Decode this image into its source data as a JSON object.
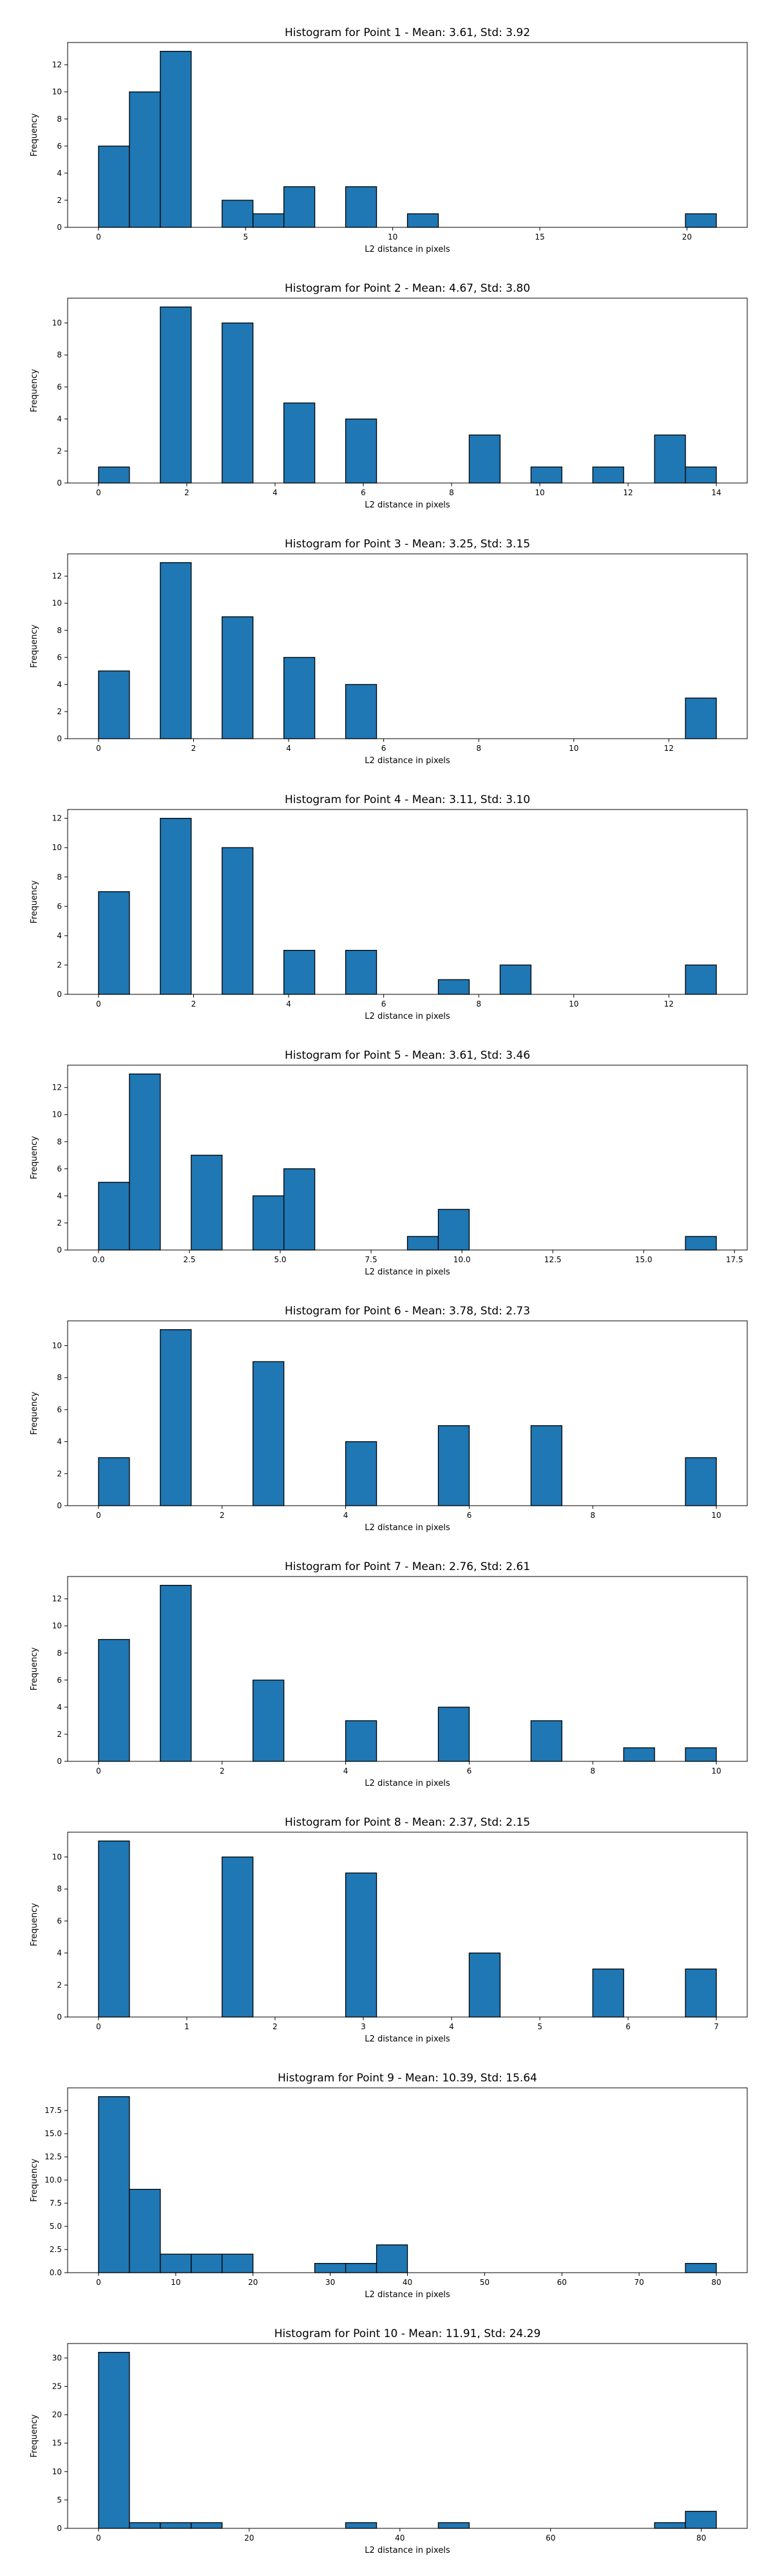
{
  "chart_data": [
    {
      "type": "bar",
      "title": "Histogram for Point 1 - Mean: 3.61, Std: 3.92",
      "xlabel": "L2 distance in pixels",
      "ylabel": "Frequency",
      "xlim": [
        -1.05,
        22.05
      ],
      "ylim": [
        0,
        13.65
      ],
      "xticks": [
        {
          "v": 0,
          "label": "0"
        },
        {
          "v": 5,
          "label": "5"
        },
        {
          "v": 10,
          "label": "10"
        },
        {
          "v": 15,
          "label": "15"
        },
        {
          "v": 20,
          "label": "20"
        }
      ],
      "yticks": [
        {
          "v": 0,
          "label": "0"
        },
        {
          "v": 2,
          "label": "2"
        },
        {
          "v": 4,
          "label": "4"
        },
        {
          "v": 6,
          "label": "6"
        },
        {
          "v": 8,
          "label": "8"
        },
        {
          "v": 10,
          "label": "10"
        },
        {
          "v": 12,
          "label": "12"
        }
      ],
      "bins": [
        [
          0,
          1.05,
          6
        ],
        [
          1.05,
          2.1,
          10
        ],
        [
          2.1,
          3.15,
          13
        ],
        [
          4.2,
          5.25,
          2
        ],
        [
          5.25,
          6.3,
          1
        ],
        [
          6.3,
          7.35,
          3
        ],
        [
          8.4,
          9.45,
          3
        ],
        [
          10.5,
          11.55,
          1
        ],
        [
          19.95,
          21,
          1
        ]
      ]
    },
    {
      "type": "bar",
      "title": "Histogram for Point 2 - Mean: 4.67, Std: 3.80",
      "xlabel": "L2 distance in pixels",
      "ylabel": "Frequency",
      "xlim": [
        -0.7,
        14.7
      ],
      "ylim": [
        0,
        11.55
      ],
      "xticks": [
        {
          "v": 0,
          "label": "0"
        },
        {
          "v": 2,
          "label": "2"
        },
        {
          "v": 4,
          "label": "4"
        },
        {
          "v": 6,
          "label": "6"
        },
        {
          "v": 8,
          "label": "8"
        },
        {
          "v": 10,
          "label": "10"
        },
        {
          "v": 12,
          "label": "12"
        },
        {
          "v": 14,
          "label": "14"
        }
      ],
      "yticks": [
        {
          "v": 0,
          "label": "0"
        },
        {
          "v": 2,
          "label": "2"
        },
        {
          "v": 4,
          "label": "4"
        },
        {
          "v": 6,
          "label": "6"
        },
        {
          "v": 8,
          "label": "8"
        },
        {
          "v": 10,
          "label": "10"
        }
      ],
      "bins": [
        [
          0,
          0.7,
          1
        ],
        [
          1.4,
          2.1,
          11
        ],
        [
          2.8,
          3.5,
          10
        ],
        [
          4.2,
          4.9,
          5
        ],
        [
          5.6,
          6.3,
          4
        ],
        [
          8.4,
          9.1,
          3
        ],
        [
          9.8,
          10.5,
          1
        ],
        [
          11.2,
          11.9,
          1
        ],
        [
          12.6,
          13.3,
          3
        ],
        [
          13.3,
          14,
          1
        ]
      ]
    },
    {
      "type": "bar",
      "title": "Histogram for Point 3 - Mean: 3.25, Std: 3.15",
      "xlabel": "L2 distance in pixels",
      "ylabel": "Frequency",
      "xlim": [
        -0.65,
        13.65
      ],
      "ylim": [
        0,
        13.65
      ],
      "xticks": [
        {
          "v": 0,
          "label": "0"
        },
        {
          "v": 2,
          "label": "2"
        },
        {
          "v": 4,
          "label": "4"
        },
        {
          "v": 6,
          "label": "6"
        },
        {
          "v": 8,
          "label": "8"
        },
        {
          "v": 10,
          "label": "10"
        },
        {
          "v": 12,
          "label": "12"
        }
      ],
      "yticks": [
        {
          "v": 0,
          "label": "0"
        },
        {
          "v": 2,
          "label": "2"
        },
        {
          "v": 4,
          "label": "4"
        },
        {
          "v": 6,
          "label": "6"
        },
        {
          "v": 8,
          "label": "8"
        },
        {
          "v": 10,
          "label": "10"
        },
        {
          "v": 12,
          "label": "12"
        }
      ],
      "bins": [
        [
          0,
          0.65,
          5
        ],
        [
          1.3,
          1.95,
          13
        ],
        [
          2.6,
          3.25,
          9
        ],
        [
          3.9,
          4.55,
          6
        ],
        [
          5.2,
          5.85,
          4
        ],
        [
          12.35,
          13,
          3
        ]
      ]
    },
    {
      "type": "bar",
      "title": "Histogram for Point 4 - Mean: 3.11, Std: 3.10",
      "xlabel": "L2 distance in pixels",
      "ylabel": "Frequency",
      "xlim": [
        -0.65,
        13.65
      ],
      "ylim": [
        0,
        12.6
      ],
      "xticks": [
        {
          "v": 0,
          "label": "0"
        },
        {
          "v": 2,
          "label": "2"
        },
        {
          "v": 4,
          "label": "4"
        },
        {
          "v": 6,
          "label": "6"
        },
        {
          "v": 8,
          "label": "8"
        },
        {
          "v": 10,
          "label": "10"
        },
        {
          "v": 12,
          "label": "12"
        }
      ],
      "yticks": [
        {
          "v": 0,
          "label": "0"
        },
        {
          "v": 2,
          "label": "2"
        },
        {
          "v": 4,
          "label": "4"
        },
        {
          "v": 6,
          "label": "6"
        },
        {
          "v": 8,
          "label": "8"
        },
        {
          "v": 10,
          "label": "10"
        },
        {
          "v": 12,
          "label": "12"
        }
      ],
      "bins": [
        [
          0,
          0.65,
          7
        ],
        [
          1.3,
          1.95,
          12
        ],
        [
          2.6,
          3.25,
          10
        ],
        [
          3.9,
          4.55,
          3
        ],
        [
          5.2,
          5.85,
          3
        ],
        [
          7.15,
          7.8,
          1
        ],
        [
          8.45,
          9.1,
          2
        ],
        [
          12.35,
          13,
          2
        ]
      ]
    },
    {
      "type": "bar",
      "title": "Histogram for Point 5 - Mean: 3.61, Std: 3.46",
      "xlabel": "L2 distance in pixels",
      "ylabel": "Frequency",
      "xlim": [
        -0.85,
        17.85
      ],
      "ylim": [
        0,
        13.65
      ],
      "xticks": [
        {
          "v": 0,
          "label": "0.0"
        },
        {
          "v": 2.5,
          "label": "2.5"
        },
        {
          "v": 5,
          "label": "5.0"
        },
        {
          "v": 7.5,
          "label": "7.5"
        },
        {
          "v": 10,
          "label": "10.0"
        },
        {
          "v": 12.5,
          "label": "12.5"
        },
        {
          "v": 15,
          "label": "15.0"
        },
        {
          "v": 17.5,
          "label": "17.5"
        }
      ],
      "yticks": [
        {
          "v": 0,
          "label": "0"
        },
        {
          "v": 2,
          "label": "2"
        },
        {
          "v": 4,
          "label": "4"
        },
        {
          "v": 6,
          "label": "6"
        },
        {
          "v": 8,
          "label": "8"
        },
        {
          "v": 10,
          "label": "10"
        },
        {
          "v": 12,
          "label": "12"
        }
      ],
      "bins": [
        [
          0,
          0.85,
          5
        ],
        [
          0.85,
          1.7,
          13
        ],
        [
          2.55,
          3.4,
          7
        ],
        [
          4.25,
          5.1,
          4
        ],
        [
          5.1,
          5.95,
          6
        ],
        [
          8.5,
          9.35,
          1
        ],
        [
          9.35,
          10.2,
          3
        ],
        [
          16.15,
          17,
          1
        ]
      ]
    },
    {
      "type": "bar",
      "title": "Histogram for Point 6 - Mean: 3.78, Std: 2.73",
      "xlabel": "L2 distance in pixels",
      "ylabel": "Frequency",
      "xlim": [
        -0.5,
        10.5
      ],
      "ylim": [
        0,
        11.55
      ],
      "xticks": [
        {
          "v": 0,
          "label": "0"
        },
        {
          "v": 2,
          "label": "2"
        },
        {
          "v": 4,
          "label": "4"
        },
        {
          "v": 6,
          "label": "6"
        },
        {
          "v": 8,
          "label": "8"
        },
        {
          "v": 10,
          "label": "10"
        }
      ],
      "yticks": [
        {
          "v": 0,
          "label": "0"
        },
        {
          "v": 2,
          "label": "2"
        },
        {
          "v": 4,
          "label": "4"
        },
        {
          "v": 6,
          "label": "6"
        },
        {
          "v": 8,
          "label": "8"
        },
        {
          "v": 10,
          "label": "10"
        }
      ],
      "bins": [
        [
          0,
          0.5,
          3
        ],
        [
          1,
          1.5,
          11
        ],
        [
          2.5,
          3,
          9
        ],
        [
          4,
          4.5,
          4
        ],
        [
          5.5,
          6,
          5
        ],
        [
          7,
          7.5,
          5
        ],
        [
          9.5,
          10,
          3
        ]
      ]
    },
    {
      "type": "bar",
      "title": "Histogram for Point 7 - Mean: 2.76, Std: 2.61",
      "xlabel": "L2 distance in pixels",
      "ylabel": "Frequency",
      "xlim": [
        -0.5,
        10.5
      ],
      "ylim": [
        0,
        13.65
      ],
      "xticks": [
        {
          "v": 0,
          "label": "0"
        },
        {
          "v": 2,
          "label": "2"
        },
        {
          "v": 4,
          "label": "4"
        },
        {
          "v": 6,
          "label": "6"
        },
        {
          "v": 8,
          "label": "8"
        },
        {
          "v": 10,
          "label": "10"
        }
      ],
      "yticks": [
        {
          "v": 0,
          "label": "0"
        },
        {
          "v": 2,
          "label": "2"
        },
        {
          "v": 4,
          "label": "4"
        },
        {
          "v": 6,
          "label": "6"
        },
        {
          "v": 8,
          "label": "8"
        },
        {
          "v": 10,
          "label": "10"
        },
        {
          "v": 12,
          "label": "12"
        }
      ],
      "bins": [
        [
          0,
          0.5,
          9
        ],
        [
          1,
          1.5,
          13
        ],
        [
          2.5,
          3,
          6
        ],
        [
          4,
          4.5,
          3
        ],
        [
          5.5,
          6,
          4
        ],
        [
          7,
          7.5,
          3
        ],
        [
          8.5,
          9,
          1
        ],
        [
          9.5,
          10,
          1
        ]
      ]
    },
    {
      "type": "bar",
      "title": "Histogram for Point 8 - Mean: 2.37, Std: 2.15",
      "xlabel": "L2 distance in pixels",
      "ylabel": "Frequency",
      "xlim": [
        -0.35,
        7.35
      ],
      "ylim": [
        0,
        11.55
      ],
      "xticks": [
        {
          "v": 0,
          "label": "0"
        },
        {
          "v": 1,
          "label": "1"
        },
        {
          "v": 2,
          "label": "2"
        },
        {
          "v": 3,
          "label": "3"
        },
        {
          "v": 4,
          "label": "4"
        },
        {
          "v": 5,
          "label": "5"
        },
        {
          "v": 6,
          "label": "6"
        },
        {
          "v": 7,
          "label": "7"
        }
      ],
      "yticks": [
        {
          "v": 0,
          "label": "0"
        },
        {
          "v": 2,
          "label": "2"
        },
        {
          "v": 4,
          "label": "4"
        },
        {
          "v": 6,
          "label": "6"
        },
        {
          "v": 8,
          "label": "8"
        },
        {
          "v": 10,
          "label": "10"
        }
      ],
      "bins": [
        [
          0,
          0.35,
          11
        ],
        [
          1.4,
          1.75,
          10
        ],
        [
          2.8,
          3.15,
          9
        ],
        [
          4.2,
          4.55,
          4
        ],
        [
          5.6,
          5.95,
          3
        ],
        [
          6.65,
          7,
          3
        ]
      ]
    },
    {
      "type": "bar",
      "title": "Histogram for Point 9 - Mean: 10.39, Std: 15.64",
      "xlabel": "L2 distance in pixels",
      "ylabel": "Frequency",
      "xlim": [
        -4,
        84
      ],
      "ylim": [
        0,
        19.95
      ],
      "xticks": [
        {
          "v": 0,
          "label": "0"
        },
        {
          "v": 10,
          "label": "10"
        },
        {
          "v": 20,
          "label": "20"
        },
        {
          "v": 30,
          "label": "30"
        },
        {
          "v": 40,
          "label": "40"
        },
        {
          "v": 50,
          "label": "50"
        },
        {
          "v": 60,
          "label": "60"
        },
        {
          "v": 70,
          "label": "70"
        },
        {
          "v": 80,
          "label": "80"
        }
      ],
      "yticks": [
        {
          "v": 0,
          "label": "0.0"
        },
        {
          "v": 2.5,
          "label": "2.5"
        },
        {
          "v": 5,
          "label": "5.0"
        },
        {
          "v": 7.5,
          "label": "7.5"
        },
        {
          "v": 10,
          "label": "10.0"
        },
        {
          "v": 12.5,
          "label": "12.5"
        },
        {
          "v": 15,
          "label": "15.0"
        },
        {
          "v": 17.5,
          "label": "17.5"
        }
      ],
      "bins": [
        [
          0,
          4,
          19
        ],
        [
          4,
          8,
          9
        ],
        [
          8,
          12,
          2
        ],
        [
          12,
          16,
          2
        ],
        [
          16,
          20,
          2
        ],
        [
          28,
          32,
          1
        ],
        [
          32,
          36,
          1
        ],
        [
          36,
          40,
          3
        ],
        [
          76,
          80,
          1
        ]
      ]
    },
    {
      "type": "bar",
      "title": "Histogram for Point 10 - Mean: 11.91, Std: 24.29",
      "xlabel": "L2 distance in pixels",
      "ylabel": "Frequency",
      "xlim": [
        -4.1,
        86.1
      ],
      "ylim": [
        0,
        32.55
      ],
      "xticks": [
        {
          "v": 0,
          "label": "0"
        },
        {
          "v": 20,
          "label": "20"
        },
        {
          "v": 40,
          "label": "40"
        },
        {
          "v": 60,
          "label": "60"
        },
        {
          "v": 80,
          "label": "80"
        }
      ],
      "yticks": [
        {
          "v": 0,
          "label": "0"
        },
        {
          "v": 5,
          "label": "5"
        },
        {
          "v": 10,
          "label": "10"
        },
        {
          "v": 15,
          "label": "15"
        },
        {
          "v": 20,
          "label": "20"
        },
        {
          "v": 25,
          "label": "25"
        },
        {
          "v": 30,
          "label": "30"
        }
      ],
      "bins": [
        [
          0,
          4.1,
          31
        ],
        [
          4.1,
          8.2,
          1
        ],
        [
          8.2,
          12.3,
          1
        ],
        [
          12.3,
          16.4,
          1
        ],
        [
          32.8,
          36.9,
          1
        ],
        [
          45.1,
          49.2,
          1
        ],
        [
          73.8,
          77.9,
          1
        ],
        [
          77.9,
          82,
          3
        ]
      ]
    }
  ]
}
